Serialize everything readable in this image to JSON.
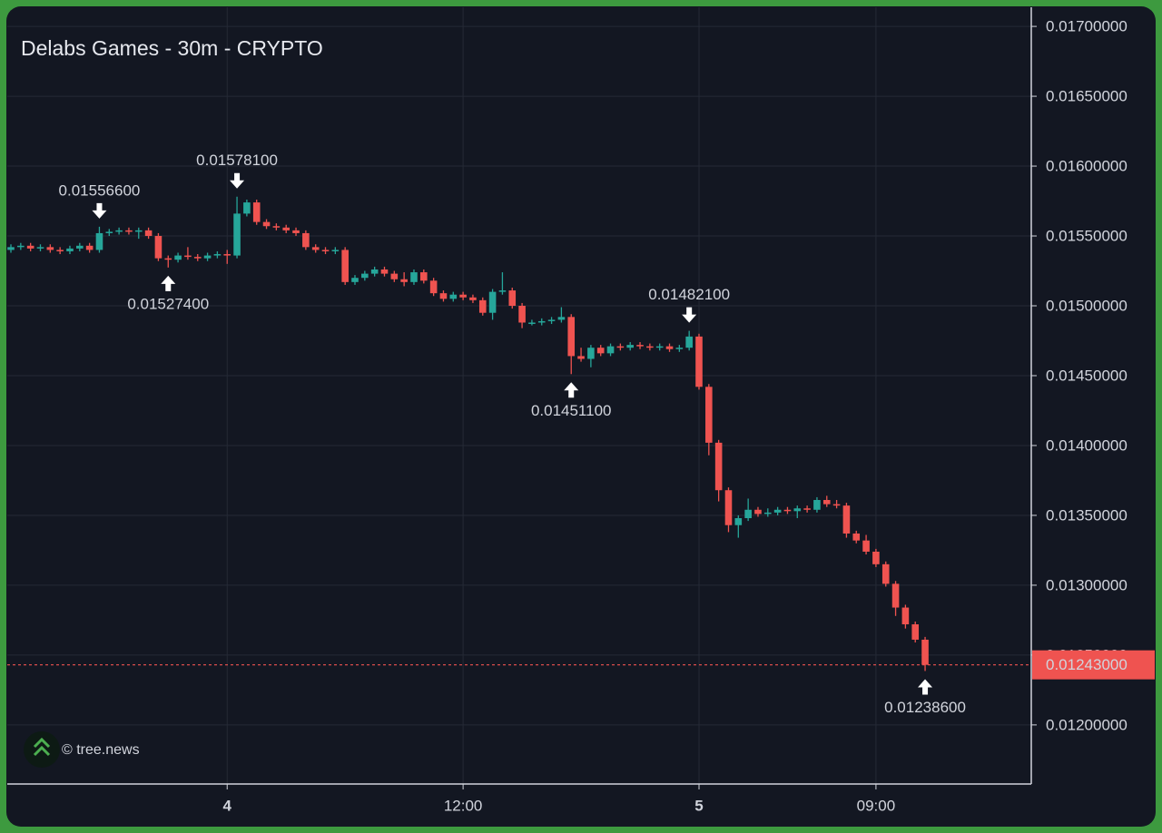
{
  "chart_data": {
    "type": "candlestick",
    "title": "Delabs Games - 30m - CRYPTO",
    "watermark": "© tree.news",
    "up_color": "#26a69a",
    "down_color": "#ef5350",
    "grid": true,
    "xlim": [
      -0.37,
      103.8
    ],
    "xticks": [
      {
        "value": 22,
        "label": "4"
      },
      {
        "value": 46,
        "label": "12:00"
      },
      {
        "value": 70,
        "label": "5"
      },
      {
        "value": 88,
        "label": "09:00"
      }
    ],
    "ylim": [
      0.011577,
      0.017137
    ],
    "yticks": [
      {
        "value": 0.012,
        "label": "0.01200000"
      },
      {
        "value": 0.0125,
        "label": "0.01250000"
      },
      {
        "value": 0.013,
        "label": "0.01300000"
      },
      {
        "value": 0.0135,
        "label": "0.01350000"
      },
      {
        "value": 0.014,
        "label": "0.01400000"
      },
      {
        "value": 0.0145,
        "label": "0.01450000"
      },
      {
        "value": 0.015,
        "label": "0.01500000"
      },
      {
        "value": 0.0155,
        "label": "0.01550000"
      },
      {
        "value": 0.016,
        "label": "0.01600000"
      },
      {
        "value": 0.0165,
        "label": "0.01650000"
      },
      {
        "value": 0.017,
        "label": "0.01700000"
      }
    ],
    "current_price": {
      "value": 0.01243,
      "label": "0.01243000"
    },
    "high_labels": [
      {
        "value": 0.015566,
        "label": "0.01556600"
      },
      {
        "value": 0.015781,
        "label": "0.01578100"
      },
      {
        "value": 0.014821,
        "label": "0.01482100"
      }
    ],
    "low_labels": [
      {
        "value": 0.015274,
        "label": "0.01527400"
      },
      {
        "value": 0.014511,
        "label": "0.01451100"
      },
      {
        "value": 0.012386,
        "label": "0.01238600"
      }
    ],
    "open": [
      0.0154,
      0.01542,
      0.01543,
      0.01541,
      0.01542,
      0.0154,
      0.01539,
      0.01541,
      0.01543,
      0.0154,
      0.01552,
      0.01553,
      0.01554,
      0.01553,
      0.01554,
      0.0155,
      0.01534,
      0.01533,
      0.01536,
      0.01535,
      0.01534,
      0.01536,
      0.01537,
      0.01536,
      0.01566,
      0.01574,
      0.0156,
      0.01557,
      0.01556,
      0.01554,
      0.01552,
      0.01542,
      0.0154,
      0.01539,
      0.0154,
      0.01517,
      0.0152,
      0.01523,
      0.01526,
      0.01523,
      0.01519,
      0.01517,
      0.01524,
      0.01518,
      0.01509,
      0.01505,
      0.01508,
      0.01506,
      0.01504,
      0.01495,
      0.0151,
      0.01511,
      0.015,
      0.01488,
      0.01488,
      0.01489,
      0.0149,
      0.01492,
      0.01464,
      0.01462,
      0.0147,
      0.01466,
      0.01471,
      0.0147,
      0.01472,
      0.01471,
      0.0147,
      0.01471,
      0.01469,
      0.0147,
      0.01478,
      0.01442,
      0.01402,
      0.01368,
      0.01343,
      0.01348,
      0.01354,
      0.01351,
      0.01352,
      0.01354,
      0.01353,
      0.01355,
      0.01354,
      0.01361,
      0.01358,
      0.01357,
      0.01337,
      0.01332,
      0.01324,
      0.01315,
      0.01301,
      0.01284,
      0.01272,
      0.01261
    ],
    "high": [
      0.01544,
      0.01545,
      0.01545,
      0.01544,
      0.01544,
      0.01542,
      0.01543,
      0.01545,
      0.01545,
      0.015566,
      0.01555,
      0.01556,
      0.01556,
      0.01556,
      0.01556,
      0.01552,
      0.01536,
      0.01538,
      0.01542,
      0.01537,
      0.01538,
      0.01539,
      0.0154,
      0.015781,
      0.01576,
      0.01576,
      0.01562,
      0.01559,
      0.01558,
      0.01556,
      0.01554,
      0.01544,
      0.01542,
      0.01542,
      0.01542,
      0.01522,
      0.01525,
      0.01528,
      0.01528,
      0.01525,
      0.01524,
      0.01526,
      0.01526,
      0.0152,
      0.01511,
      0.0151,
      0.0151,
      0.01508,
      0.01506,
      0.01512,
      0.01524,
      0.01513,
      0.01502,
      0.0149,
      0.01491,
      0.01492,
      0.01499,
      0.01494,
      0.0147,
      0.01472,
      0.01472,
      0.01473,
      0.01473,
      0.01474,
      0.01474,
      0.01473,
      0.01473,
      0.01473,
      0.01472,
      0.014821,
      0.0148,
      0.01444,
      0.01404,
      0.0137,
      0.0135,
      0.01362,
      0.01356,
      0.01355,
      0.01356,
      0.01356,
      0.01357,
      0.01357,
      0.01363,
      0.01364,
      0.01361,
      0.01359,
      0.01339,
      0.01336,
      0.01326,
      0.01317,
      0.01303,
      0.01286,
      0.01274,
      0.01263
    ],
    "low": [
      0.01538,
      0.0154,
      0.01539,
      0.01539,
      0.01538,
      0.01537,
      0.01537,
      0.01539,
      0.01538,
      0.01538,
      0.0155,
      0.01551,
      0.01551,
      0.01548,
      0.01548,
      0.01532,
      0.015274,
      0.01531,
      0.01533,
      0.01532,
      0.01532,
      0.01534,
      0.0153,
      0.01534,
      0.01564,
      0.01558,
      0.01555,
      0.01554,
      0.01552,
      0.0155,
      0.0154,
      0.01538,
      0.01537,
      0.01537,
      0.01515,
      0.01515,
      0.01518,
      0.01521,
      0.01521,
      0.01517,
      0.01514,
      0.01515,
      0.01516,
      0.01507,
      0.01503,
      0.01503,
      0.01504,
      0.01502,
      0.01493,
      0.0149,
      0.01508,
      0.01498,
      0.01484,
      0.01486,
      0.01486,
      0.01487,
      0.01488,
      0.014511,
      0.0146,
      0.01456,
      0.01464,
      0.01464,
      0.01468,
      0.01468,
      0.01469,
      0.01468,
      0.01468,
      0.01467,
      0.01467,
      0.01468,
      0.0144,
      0.01393,
      0.0136,
      0.01338,
      0.01334,
      0.01346,
      0.01349,
      0.01349,
      0.0135,
      0.01351,
      0.01348,
      0.01352,
      0.01352,
      0.01356,
      0.01355,
      0.01334,
      0.0133,
      0.01322,
      0.01313,
      0.01299,
      0.01278,
      0.01269,
      0.01259,
      0.012386
    ],
    "close": [
      0.01542,
      0.01543,
      0.01541,
      0.01542,
      0.0154,
      0.01539,
      0.01541,
      0.01543,
      0.0154,
      0.01552,
      0.01553,
      0.01554,
      0.01553,
      0.01554,
      0.0155,
      0.01534,
      0.01533,
      0.01536,
      0.01535,
      0.01534,
      0.01536,
      0.01537,
      0.01536,
      0.01566,
      0.01574,
      0.0156,
      0.01557,
      0.01556,
      0.01554,
      0.01552,
      0.01542,
      0.0154,
      0.01539,
      0.0154,
      0.01517,
      0.0152,
      0.01523,
      0.01526,
      0.01523,
      0.01519,
      0.01517,
      0.01524,
      0.01518,
      0.01509,
      0.01505,
      0.01508,
      0.01506,
      0.01504,
      0.01495,
      0.0151,
      0.01511,
      0.015,
      0.01488,
      0.01488,
      0.01489,
      0.0149,
      0.01492,
      0.01464,
      0.01462,
      0.0147,
      0.01466,
      0.01471,
      0.0147,
      0.01472,
      0.01471,
      0.0147,
      0.01471,
      0.01469,
      0.0147,
      0.01478,
      0.01442,
      0.01402,
      0.01368,
      0.01343,
      0.01348,
      0.01354,
      0.01351,
      0.01352,
      0.01354,
      0.01353,
      0.01355,
      0.01354,
      0.01361,
      0.01358,
      0.01357,
      0.01337,
      0.01332,
      0.01324,
      0.01315,
      0.01301,
      0.01284,
      0.01272,
      0.01261,
      0.01243
    ]
  }
}
